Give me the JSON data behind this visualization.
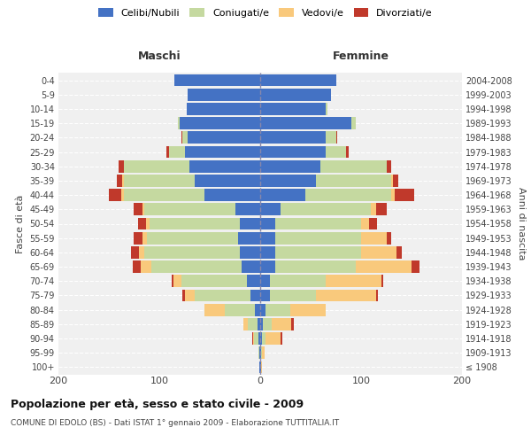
{
  "age_groups": [
    "100+",
    "95-99",
    "90-94",
    "85-89",
    "80-84",
    "75-79",
    "70-74",
    "65-69",
    "60-64",
    "55-59",
    "50-54",
    "45-49",
    "40-44",
    "35-39",
    "30-34",
    "25-29",
    "20-24",
    "15-19",
    "10-14",
    "5-9",
    "0-4"
  ],
  "birth_years": [
    "≤ 1908",
    "1909-1913",
    "1914-1918",
    "1919-1923",
    "1924-1928",
    "1929-1933",
    "1934-1938",
    "1939-1943",
    "1944-1948",
    "1949-1953",
    "1954-1958",
    "1959-1963",
    "1964-1968",
    "1969-1973",
    "1974-1978",
    "1979-1983",
    "1984-1988",
    "1989-1993",
    "1994-1998",
    "1999-2003",
    "2004-2008"
  ],
  "males": {
    "celibi": [
      1,
      1,
      2,
      3,
      5,
      10,
      13,
      18,
      20,
      22,
      20,
      25,
      55,
      65,
      70,
      75,
      72,
      80,
      73,
      72,
      85
    ],
    "coniugati": [
      0,
      1,
      4,
      9,
      30,
      55,
      65,
      90,
      95,
      90,
      90,
      90,
      80,
      70,
      65,
      15,
      5,
      2,
      0,
      0,
      0
    ],
    "vedovi": [
      0,
      0,
      1,
      5,
      20,
      10,
      8,
      10,
      5,
      5,
      3,
      2,
      3,
      2,
      0,
      0,
      0,
      0,
      0,
      0,
      0
    ],
    "divorziati": [
      0,
      0,
      1,
      0,
      0,
      2,
      2,
      8,
      8,
      8,
      8,
      8,
      12,
      5,
      5,
      3,
      1,
      0,
      0,
      0,
      0
    ]
  },
  "females": {
    "nubili": [
      1,
      1,
      2,
      3,
      5,
      10,
      10,
      15,
      15,
      15,
      15,
      20,
      45,
      55,
      60,
      65,
      65,
      90,
      65,
      70,
      75
    ],
    "coniugate": [
      0,
      1,
      3,
      8,
      25,
      45,
      55,
      80,
      85,
      85,
      85,
      90,
      85,
      75,
      65,
      20,
      10,
      5,
      2,
      0,
      0
    ],
    "vedove": [
      1,
      2,
      15,
      20,
      35,
      60,
      55,
      55,
      35,
      25,
      8,
      5,
      3,
      2,
      0,
      0,
      0,
      0,
      0,
      0,
      0
    ],
    "divorziate": [
      0,
      0,
      2,
      2,
      0,
      2,
      2,
      8,
      5,
      5,
      8,
      10,
      20,
      5,
      5,
      3,
      1,
      0,
      0,
      0,
      0
    ]
  },
  "colors": {
    "celibi": "#4472c4",
    "coniugati": "#c5d9a0",
    "vedovi": "#f9c97c",
    "divorziati": "#c0392b"
  },
  "title": "Popolazione per età, sesso e stato civile - 2009",
  "subtitle": "COMUNE DI EDOLO (BS) - Dati ISTAT 1° gennaio 2009 - Elaborazione TUTTITALIA.IT",
  "xlabel_left": "Maschi",
  "xlabel_right": "Femmine",
  "ylabel_left": "Fasce di età",
  "ylabel_right": "Anni di nascita",
  "xlim": 200,
  "background_color": "#ffffff",
  "plot_bg": "#f0f0f0",
  "grid_color": "#ffffff",
  "legend_labels": [
    "Celibi/Nubili",
    "Coniugati/e",
    "Vedovi/e",
    "Divorziati/e"
  ]
}
